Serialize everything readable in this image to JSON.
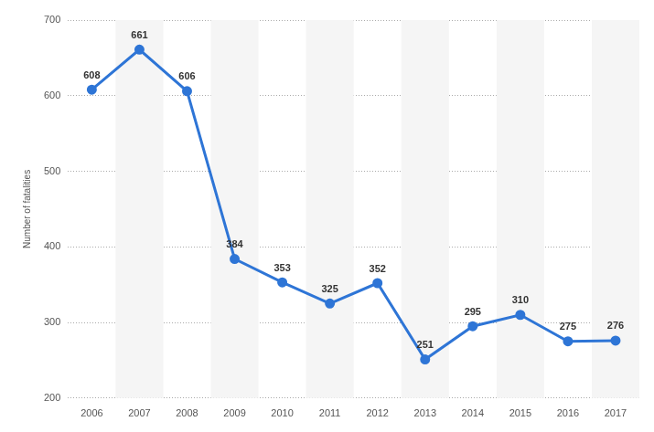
{
  "chart_data": {
    "type": "line",
    "y_label": "Number of fatalities",
    "categories": [
      "2006",
      "2007",
      "2008",
      "2009",
      "2010",
      "2011",
      "2012",
      "2013",
      "2014",
      "2015",
      "2016",
      "2017"
    ],
    "values": [
      608,
      661,
      606,
      384,
      353,
      325,
      352,
      251,
      295,
      310,
      275,
      276
    ],
    "color": "#2e75d6",
    "ylim": [
      200,
      700
    ],
    "yticks": [
      200,
      300,
      400,
      500,
      600,
      700
    ],
    "grid": true,
    "data_labels": true,
    "marker": "circle",
    "line_style": "solid"
  }
}
